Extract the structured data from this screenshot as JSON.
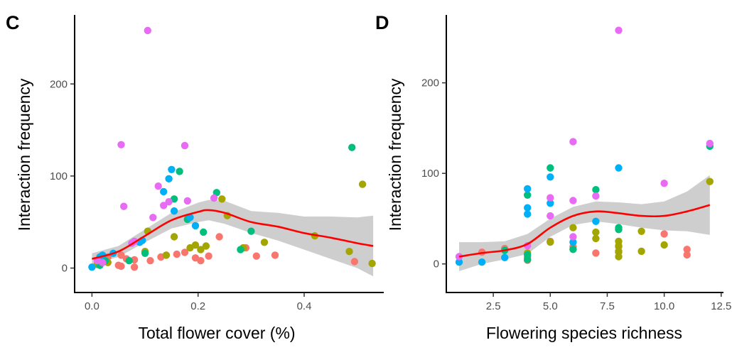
{
  "colors": {
    "group1": "#F8766D",
    "group2": "#A3A500",
    "group3": "#00BF7D",
    "group4": "#00B0F6",
    "group5": "#E76BF3",
    "smooth_line": "#FF0000",
    "ribbon": "#BEBEBE"
  },
  "chart_data": [
    {
      "type": "scatter",
      "panel_label": "C",
      "xlabel": "Total flower cover (%)",
      "ylabel": "Interaction frequency",
      "xlim": [
        -0.03,
        0.55
      ],
      "ylim": [
        -25,
        275
      ],
      "x_ticks": [
        0.0,
        0.2,
        0.4
      ],
      "x_tick_labels": [
        "0.0",
        "0.2",
        "0.4"
      ],
      "y_ticks": [
        0,
        100,
        200
      ],
      "y_tick_labels": [
        "0",
        "100",
        "200"
      ],
      "grid": false,
      "legend": "none",
      "series": [
        {
          "color_key": "group1",
          "x": [
            0.012,
            0.03,
            0.05,
            0.055,
            0.065,
            0.08,
            0.11,
            0.13,
            0.14,
            0.16,
            0.175,
            0.195,
            0.205,
            0.22,
            0.24,
            0.29,
            0.31,
            0.345,
            0.495,
            0.055,
            0.08
          ],
          "y": [
            5,
            12,
            3,
            2,
            10,
            1,
            8,
            12,
            14,
            15,
            17,
            11,
            8,
            13,
            34,
            22,
            13,
            14,
            7,
            14,
            9
          ]
        },
        {
          "color_key": "group2",
          "x": [
            0.01,
            0.03,
            0.1,
            0.105,
            0.14,
            0.155,
            0.185,
            0.195,
            0.205,
            0.215,
            0.245,
            0.255,
            0.285,
            0.325,
            0.42,
            0.485,
            0.51,
            0.528
          ],
          "y": [
            4,
            6,
            18,
            40,
            14,
            34,
            22,
            25,
            20,
            24,
            75,
            57,
            22,
            28,
            35,
            18,
            91,
            5
          ]
        },
        {
          "color_key": "group3",
          "x": [
            0.015,
            0.02,
            0.025,
            0.07,
            0.1,
            0.155,
            0.165,
            0.18,
            0.21,
            0.235,
            0.28,
            0.3,
            0.49,
            0.015
          ],
          "y": [
            3,
            10,
            8,
            8,
            16,
            75,
            105,
            53,
            39,
            82,
            20,
            40,
            131,
            12
          ]
        },
        {
          "color_key": "group4",
          "x": [
            0.0,
            0.015,
            0.02,
            0.04,
            0.09,
            0.095,
            0.135,
            0.145,
            0.15,
            0.155,
            0.185,
            0.195
          ],
          "y": [
            1,
            12,
            14,
            16,
            28,
            30,
            83,
            97,
            107,
            62,
            55,
            46
          ]
        },
        {
          "color_key": "group5",
          "x": [
            0.01,
            0.055,
            0.06,
            0.075,
            0.08,
            0.105,
            0.115,
            0.125,
            0.135,
            0.145,
            0.175,
            0.18,
            0.23,
            0.02
          ],
          "y": [
            8,
            134,
            67,
            27,
            29,
            258,
            55,
            89,
            68,
            72,
            133,
            73,
            76,
            6
          ]
        }
      ],
      "smooth": {
        "x": [
          0.0,
          0.05,
          0.1,
          0.15,
          0.2,
          0.22,
          0.25,
          0.3,
          0.35,
          0.4,
          0.45,
          0.5,
          0.53
        ],
        "y": [
          10,
          18,
          35,
          52,
          61,
          63,
          60,
          50,
          45,
          38,
          33,
          27,
          24
        ],
        "lower": [
          4,
          12,
          28,
          43,
          50,
          52,
          48,
          38,
          30,
          20,
          10,
          0,
          -9
        ],
        "upper": [
          16,
          24,
          42,
          60,
          71,
          74,
          73,
          62,
          60,
          56,
          56,
          55,
          57
        ]
      }
    },
    {
      "type": "scatter",
      "panel_label": "D",
      "xlabel": "Flowering species richness",
      "ylabel": "Interaction frequency",
      "xlim": [
        0.5,
        12.6
      ],
      "ylim": [
        -30,
        275
      ],
      "x_ticks": [
        2.5,
        5.0,
        7.5,
        10.0,
        12.5
      ],
      "x_tick_labels": [
        "2.5",
        "5.0",
        "7.5",
        "10.0",
        "12.5"
      ],
      "y_ticks": [
        0,
        100,
        200
      ],
      "y_tick_labels": [
        "0",
        "100",
        "200"
      ],
      "grid": false,
      "legend": "none",
      "series": [
        {
          "color_key": "group1",
          "x": [
            2,
            3,
            4,
            4,
            5,
            6,
            7,
            8,
            8,
            10,
            11,
            11
          ],
          "y": [
            13,
            17,
            4,
            7,
            25,
            19,
            12,
            13,
            19,
            33,
            16,
            10
          ]
        },
        {
          "color_key": "group2",
          "x": [
            4,
            5,
            6,
            7,
            7,
            8,
            8,
            8,
            8,
            9,
            9,
            10,
            12
          ],
          "y": [
            12,
            24,
            40,
            35,
            28,
            25,
            20,
            14,
            8,
            36,
            14,
            21,
            91
          ]
        },
        {
          "color_key": "group3",
          "x": [
            3,
            4,
            4,
            5,
            6,
            7,
            8,
            8,
            12,
            4
          ],
          "y": [
            15,
            76,
            5,
            106,
            16,
            82,
            38,
            40,
            130,
            10
          ]
        },
        {
          "color_key": "group4",
          "x": [
            1,
            2,
            3,
            4,
            4,
            4,
            5,
            5,
            6,
            7,
            8
          ],
          "y": [
            2,
            2,
            7,
            83,
            62,
            55,
            96,
            67,
            24,
            47,
            106
          ]
        },
        {
          "color_key": "group5",
          "x": [
            1,
            5,
            5,
            6,
            6,
            6,
            7,
            8,
            10,
            12,
            4
          ],
          "y": [
            8,
            73,
            53,
            135,
            70,
            30,
            75,
            258,
            89,
            133,
            20
          ]
        }
      ],
      "smooth": {
        "x": [
          1,
          2,
          3,
          4,
          5,
          6,
          7,
          8,
          9,
          10,
          11,
          12
        ],
        "y": [
          8,
          12,
          15,
          22,
          40,
          53,
          58,
          56,
          53,
          53,
          58,
          65
        ],
        "lower": [
          -8,
          0,
          5,
          11,
          30,
          43,
          47,
          44,
          40,
          37,
          36,
          32
        ],
        "upper": [
          24,
          24,
          25,
          33,
          50,
          63,
          69,
          68,
          66,
          69,
          80,
          98
        ]
      }
    }
  ]
}
